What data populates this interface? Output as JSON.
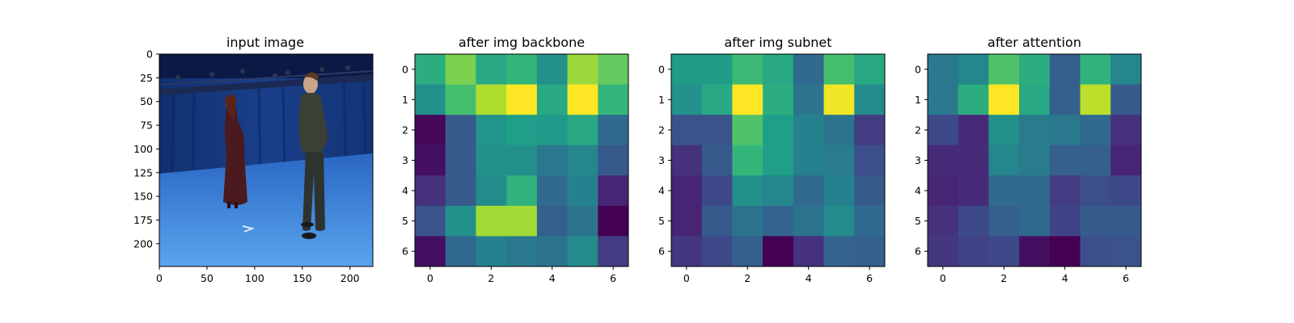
{
  "chart_data": [
    {
      "type": "image",
      "title": "input image",
      "xticks": [
        0,
        50,
        100,
        150,
        200
      ],
      "yticks": [
        0,
        25,
        50,
        75,
        100,
        125,
        150,
        175,
        200
      ],
      "xlim": [
        0,
        224
      ],
      "ylim": [
        224,
        0
      ],
      "scene": [
        "blue studio backdrop",
        "woman in red dress",
        "man in dark clothes"
      ]
    },
    {
      "type": "heatmap",
      "title": "after img backbone",
      "xticks": [
        0,
        2,
        4,
        6
      ],
      "yticks": [
        0,
        1,
        2,
        3,
        4,
        5,
        6
      ],
      "colormap": "viridis",
      "values": [
        [
          0.62,
          0.8,
          0.6,
          0.66,
          0.5,
          0.85,
          0.76
        ],
        [
          0.5,
          0.7,
          0.88,
          1.0,
          0.6,
          1.0,
          0.66
        ],
        [
          0.02,
          0.28,
          0.52,
          0.56,
          0.54,
          0.6,
          0.34
        ],
        [
          0.04,
          0.28,
          0.5,
          0.5,
          0.4,
          0.46,
          0.28
        ],
        [
          0.14,
          0.28,
          0.48,
          0.64,
          0.34,
          0.44,
          0.1
        ],
        [
          0.26,
          0.5,
          0.86,
          0.86,
          0.3,
          0.38,
          0.0
        ],
        [
          0.04,
          0.34,
          0.44,
          0.4,
          0.38,
          0.48,
          0.18
        ]
      ]
    },
    {
      "type": "heatmap",
      "title": "after img subnet",
      "xticks": [
        0,
        2,
        4,
        6
      ],
      "yticks": [
        0,
        1,
        2,
        3,
        4,
        5,
        6
      ],
      "colormap": "viridis",
      "values": [
        [
          0.55,
          0.55,
          0.68,
          0.6,
          0.34,
          0.7,
          0.6
        ],
        [
          0.5,
          0.6,
          1.0,
          0.62,
          0.38,
          0.98,
          0.48
        ],
        [
          0.26,
          0.26,
          0.72,
          0.56,
          0.44,
          0.38,
          0.18
        ],
        [
          0.14,
          0.28,
          0.66,
          0.56,
          0.44,
          0.42,
          0.24
        ],
        [
          0.1,
          0.22,
          0.5,
          0.46,
          0.34,
          0.44,
          0.28
        ],
        [
          0.1,
          0.28,
          0.38,
          0.32,
          0.38,
          0.48,
          0.34
        ],
        [
          0.16,
          0.22,
          0.3,
          0.0,
          0.14,
          0.32,
          0.3
        ]
      ]
    },
    {
      "type": "heatmap",
      "title": "after attention",
      "xticks": [
        0,
        2,
        4,
        6
      ],
      "yticks": [
        0,
        1,
        2,
        3,
        4,
        5,
        6
      ],
      "colormap": "viridis",
      "values": [
        [
          0.4,
          0.46,
          0.72,
          0.62,
          0.3,
          0.64,
          0.46
        ],
        [
          0.4,
          0.62,
          1.0,
          0.6,
          0.3,
          0.9,
          0.28
        ],
        [
          0.22,
          0.12,
          0.5,
          0.42,
          0.4,
          0.34,
          0.14
        ],
        [
          0.12,
          0.12,
          0.46,
          0.42,
          0.3,
          0.3,
          0.1
        ],
        [
          0.1,
          0.12,
          0.34,
          0.34,
          0.18,
          0.24,
          0.22
        ],
        [
          0.14,
          0.22,
          0.3,
          0.34,
          0.2,
          0.28,
          0.28
        ],
        [
          0.16,
          0.2,
          0.22,
          0.04,
          0.0,
          0.24,
          0.26
        ]
      ]
    }
  ]
}
